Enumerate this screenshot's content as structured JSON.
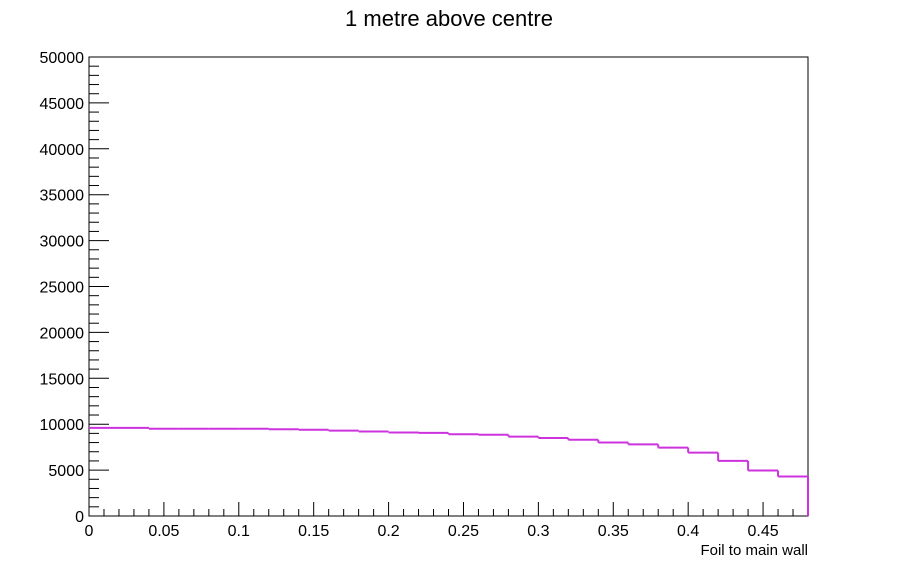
{
  "chart_data": {
    "type": "histogram",
    "title": "1 metre above centre",
    "xlabel": "Foil to main wall",
    "ylabel": "",
    "xlim": [
      0,
      0.48
    ],
    "ylim": [
      0,
      50000
    ],
    "x_ticks": [
      "0",
      "0.05",
      "0.1",
      "0.15",
      "0.2",
      "0.25",
      "0.3",
      "0.35",
      "0.4",
      "0.45"
    ],
    "y_ticks": [
      "0",
      "5000",
      "10000",
      "15000",
      "20000",
      "25000",
      "30000",
      "35000",
      "40000",
      "45000",
      "50000"
    ],
    "bin_edges": [
      0,
      0.02,
      0.04,
      0.06,
      0.08,
      0.1,
      0.12,
      0.14,
      0.16,
      0.18,
      0.2,
      0.22,
      0.24,
      0.26,
      0.28,
      0.3,
      0.32,
      0.34,
      0.36,
      0.38,
      0.4,
      0.42,
      0.44,
      0.46,
      0.48
    ],
    "series": [
      {
        "values": [
          9600,
          9600,
          9500,
          9500,
          9500,
          9500,
          9450,
          9400,
          9300,
          9200,
          9100,
          9050,
          8900,
          8850,
          8650,
          8500,
          8300,
          8000,
          7800,
          7450,
          6900,
          6000,
          4950,
          4300
        ],
        "color": "#cc33dd"
      }
    ],
    "grid": false,
    "legend": "none"
  }
}
